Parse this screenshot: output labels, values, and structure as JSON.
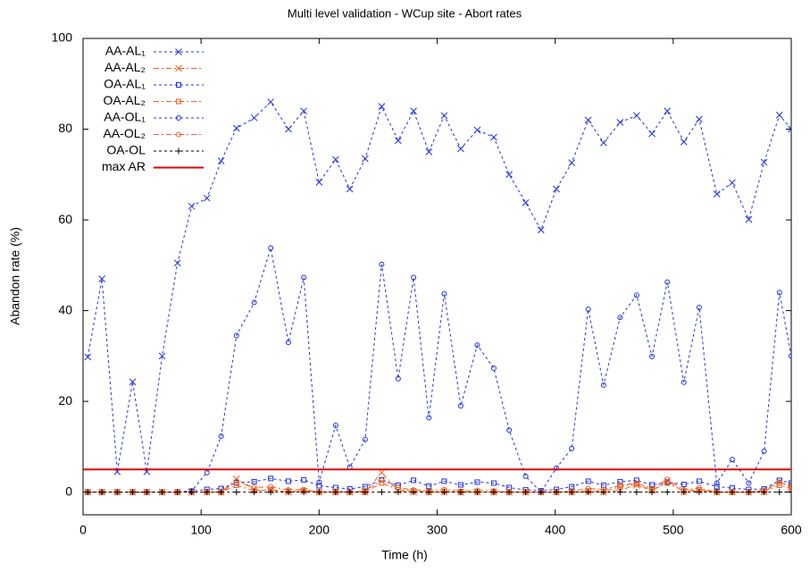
{
  "chart_data": {
    "type": "line",
    "title": "Multi level validation - WCup site - Abort rates",
    "x_label": "Time (h)",
    "y_label": "Abandon rate (%)",
    "xlim": [
      0,
      600
    ],
    "xticks": [
      0,
      100,
      200,
      300,
      400,
      500,
      600
    ],
    "ylim": [
      -5,
      100
    ],
    "yticks": [
      0,
      20,
      40,
      60,
      80,
      100
    ],
    "grid": false,
    "legend": "top-left",
    "x": [
      4,
      16,
      29,
      42,
      54,
      67,
      80,
      92,
      105,
      117,
      130,
      145,
      159,
      174,
      187,
      200,
      214,
      226,
      239,
      253,
      267,
      280,
      293,
      306,
      320,
      334,
      348,
      361,
      375,
      388,
      401,
      414,
      428,
      441,
      455,
      469,
      482,
      495,
      509,
      522,
      537,
      550,
      564,
      577,
      590,
      600
    ],
    "series": [
      {
        "name": "AA-AL₁",
        "color": "#2030e0",
        "marker": "x",
        "dash": "3,3",
        "values": [
          29.8,
          47,
          4.5,
          24.3,
          4.5,
          30,
          50.5,
          63,
          64.8,
          73,
          80.2,
          82.5,
          86,
          80,
          84,
          68.3,
          73.3,
          66.8,
          73.5,
          85,
          77.5,
          84,
          75,
          83,
          75.7,
          79.8,
          78.2,
          70,
          63.8,
          57.8,
          66.8,
          72.6,
          82,
          77,
          81.5,
          83,
          79,
          84,
          77.2,
          82.2,
          65.7,
          68.2,
          60.1,
          72.7,
          83.1,
          80
        ]
      },
      {
        "name": "AA-AL₂",
        "color": "#f06020",
        "marker": "x",
        "dash": "6,3,2,3",
        "values": [
          0,
          0,
          0,
          0,
          0,
          0,
          0,
          0,
          0,
          0,
          2.9,
          0.5,
          0.3,
          0,
          0.2,
          0,
          0,
          0,
          0,
          4.3,
          0.3,
          0,
          0,
          0,
          0,
          0,
          0,
          0,
          0,
          0,
          0,
          0,
          0,
          0,
          0.5,
          1.5,
          0.3,
          2.5,
          0,
          0.3,
          0,
          0,
          0,
          0,
          2.3,
          1
        ]
      },
      {
        "name": "OA-AL₁",
        "color": "#2030e0",
        "marker": "square",
        "dash": "3,3",
        "values": [
          0,
          0,
          0,
          0,
          0,
          0,
          0,
          0.2,
          0.6,
          0.8,
          2.1,
          2.3,
          3,
          2.4,
          2.7,
          1.4,
          1,
          0.7,
          1.2,
          2.7,
          1.5,
          2.6,
          1.3,
          2.4,
          1.6,
          2.2,
          2,
          1,
          0.5,
          0.3,
          0.6,
          1.2,
          2.4,
          1.5,
          2.3,
          2.6,
          1.6,
          2.2,
          1.7,
          2.4,
          1.2,
          0.9,
          0.6,
          0.7,
          2.6,
          2
        ]
      },
      {
        "name": "OA-AL₂",
        "color": "#f06020",
        "marker": "square",
        "dash": "6,3,2,3",
        "values": [
          0,
          0,
          0,
          0,
          0,
          0,
          0,
          0,
          0,
          0,
          1.5,
          0.3,
          0.5,
          0.2,
          0.3,
          0,
          0,
          0,
          0,
          2,
          0.5,
          0.3,
          0,
          0.2,
          0,
          0,
          0,
          0,
          0,
          0,
          0,
          0,
          0.3,
          0.2,
          1.2,
          1.8,
          0.4,
          2,
          0.3,
          0.5,
          0,
          0,
          0,
          0.2,
          1.5,
          0.8
        ]
      },
      {
        "name": "AA-OL₁",
        "color": "#2030e0",
        "marker": "circle",
        "dash": "3,3",
        "values": [
          0,
          0,
          0,
          0,
          0,
          0,
          0,
          0.3,
          4.3,
          12.3,
          34.5,
          41.8,
          53.8,
          33,
          47.3,
          2.2,
          14.7,
          5.5,
          11.6,
          50.2,
          25,
          47.3,
          16.4,
          43.7,
          19,
          32.4,
          27.3,
          13.7,
          3.5,
          0,
          5.3,
          9.6,
          40.3,
          23.6,
          38.5,
          43.4,
          29.9,
          46.3,
          24.2,
          40.7,
          2,
          7.2,
          2,
          9,
          44,
          30
        ]
      },
      {
        "name": "AA-OL₂",
        "color": "#f06020",
        "marker": "circle",
        "dash": "6,3,2,3",
        "values": [
          0,
          0,
          0,
          0,
          0,
          0,
          0,
          0,
          0,
          0,
          2.4,
          1,
          1.2,
          0.5,
          0.6,
          0,
          0.2,
          0,
          0.3,
          2.6,
          1,
          0.5,
          0.3,
          0.6,
          0.2,
          0.4,
          0.3,
          0,
          0,
          0,
          0,
          0.2,
          0.8,
          0.6,
          1.5,
          2,
          0.8,
          2.8,
          0.5,
          0.9,
          0,
          0,
          0,
          0.4,
          2.2,
          1.4
        ]
      },
      {
        "name": "OA-OL",
        "color": "#000000",
        "marker": "plus",
        "dash": "3,3",
        "values": [
          0,
          0,
          0,
          0,
          0,
          0,
          0,
          0,
          0,
          0,
          0,
          0,
          0,
          0,
          0,
          0,
          0,
          0,
          0,
          0,
          0,
          0,
          0,
          0,
          0,
          0,
          0,
          0,
          0,
          0,
          0,
          0,
          0,
          0,
          0,
          0,
          0,
          0,
          0,
          0,
          0,
          0,
          0,
          0,
          0,
          0
        ]
      },
      {
        "name": "max AR",
        "color": "#e00000",
        "marker": "none",
        "dash": "none",
        "width": 2,
        "x": [
          0,
          600
        ],
        "values": [
          5,
          5
        ]
      }
    ]
  }
}
